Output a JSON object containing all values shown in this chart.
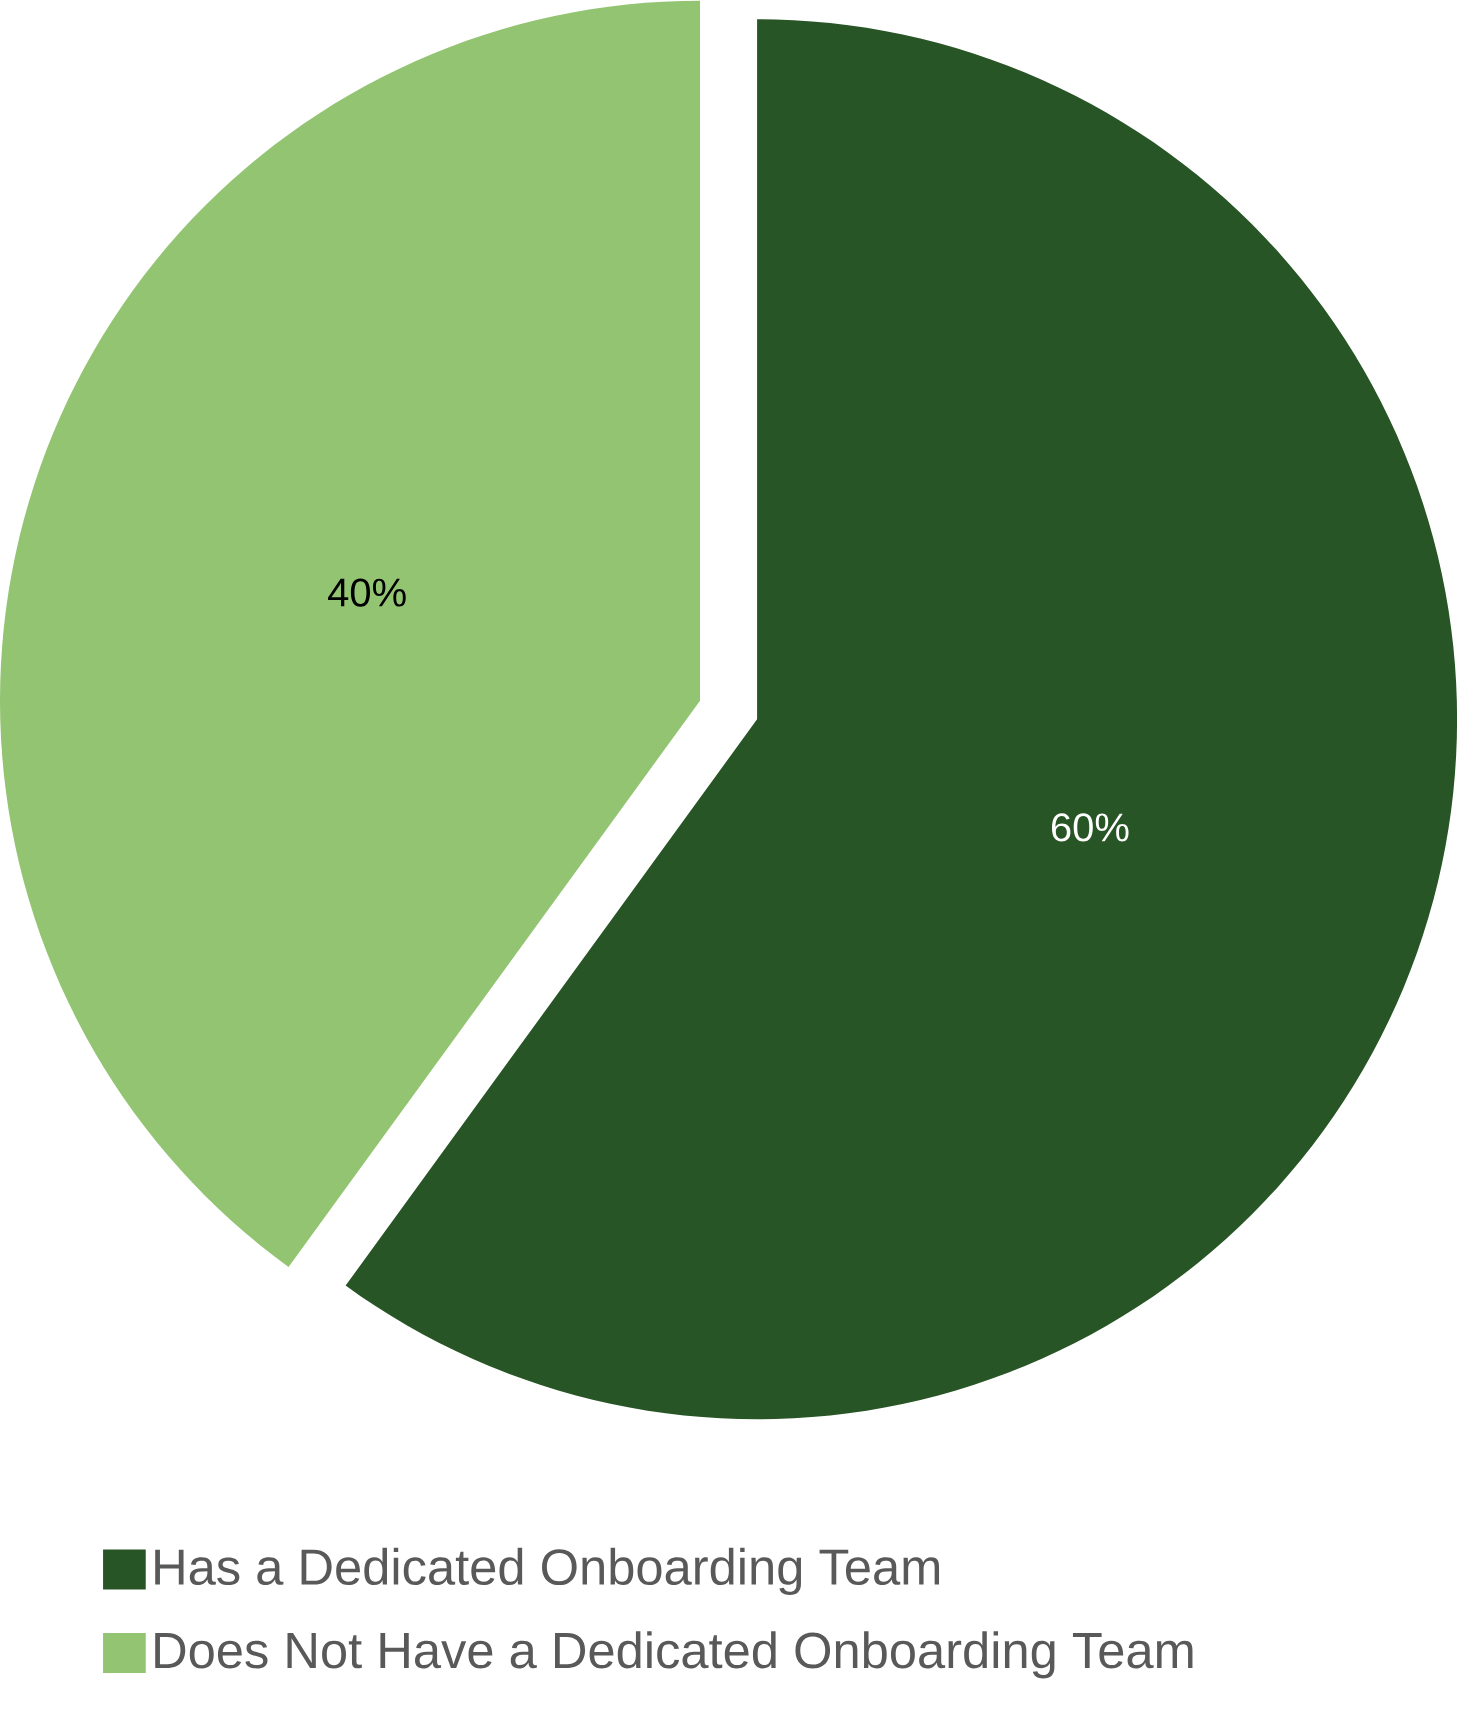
{
  "chart_data": {
    "type": "pie",
    "categories": [
      "Has a Dedicated Onboarding Team",
      "Does Not Have a Dedicated Onboarding Team"
    ],
    "values": [
      60,
      40
    ],
    "colors": [
      "#285526",
      "#93c472"
    ],
    "value_labels": [
      "60%",
      "40%"
    ],
    "legend": "bottom"
  }
}
